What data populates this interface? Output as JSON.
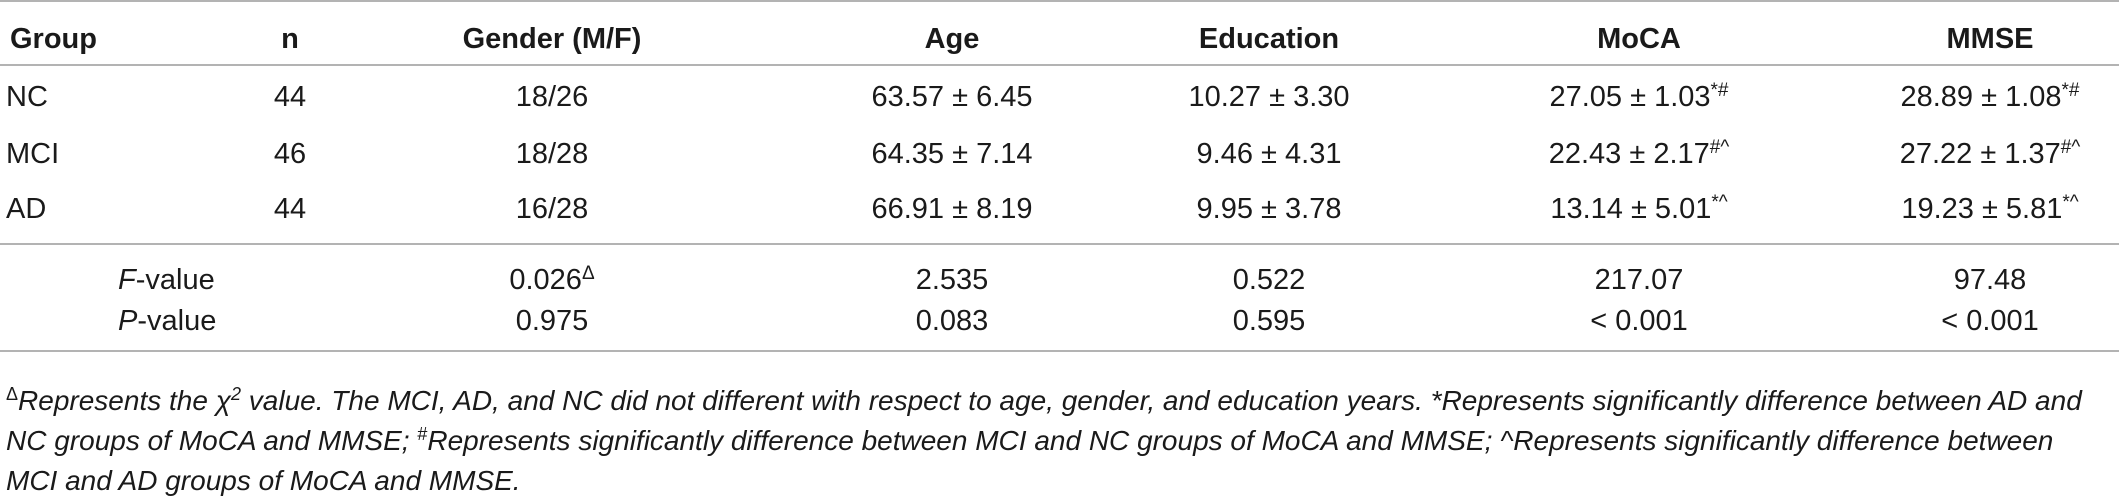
{
  "table": {
    "headers": [
      "Group",
      "n",
      "Gender (M/F)",
      "Age",
      "Education",
      "MoCA",
      "MMSE"
    ],
    "rows": [
      {
        "group": "NC",
        "n": "44",
        "gender": "18/26",
        "age": "63.57 ± 6.45",
        "education": "10.27 ± 3.30",
        "moca": "27.05 ± 1.03",
        "moca_sup": "*#",
        "mmse": "28.89 ± 1.08",
        "mmse_sup": "*#"
      },
      {
        "group": "MCI",
        "n": "46",
        "gender": "18/28",
        "age": "64.35 ± 7.14",
        "education": "9.46 ± 4.31",
        "moca": "22.43 ± 2.17",
        "moca_sup": "#^",
        "mmse": "27.22 ± 1.37",
        "mmse_sup": "#^"
      },
      {
        "group": "AD",
        "n": "44",
        "gender": "16/28",
        "age": "66.91 ± 8.19",
        "education": "9.95 ± 3.78",
        "moca": "13.14 ± 5.01",
        "moca_sup": "*^",
        "mmse": "19.23 ± 5.81",
        "mmse_sup": "*^"
      }
    ],
    "stats": [
      {
        "label_italic": "F",
        "label_rest": "-value",
        "gender": "0.026",
        "gender_sup": "Δ",
        "age": "2.535",
        "education": "0.522",
        "moca": "217.07",
        "mmse": "97.48"
      },
      {
        "label_italic": "P",
        "label_rest": "-value",
        "gender": "0.975",
        "gender_sup": "",
        "age": "0.083",
        "education": "0.595",
        "moca": "< 0.001",
        "mmse": "< 0.001"
      }
    ]
  },
  "footnote": {
    "delta_symbol": "Δ",
    "part1": "Represents the ",
    "chi": "χ",
    "chi_sup": "2",
    "part2": " value. The MCI, AD, and NC did not different with respect to age, gender, and education years. ",
    "star_symbol": "*",
    "part3": "Represents significantly difference between AD and NC groups of MoCA and MMSE; ",
    "hash_symbol": "#",
    "part4": "Represents significantly difference between MCI and NC groups of MoCA and MMSE; ",
    "caret_symbol": "^",
    "part5": "Represents significantly difference between MCI and AD groups of MoCA and MMSE."
  }
}
